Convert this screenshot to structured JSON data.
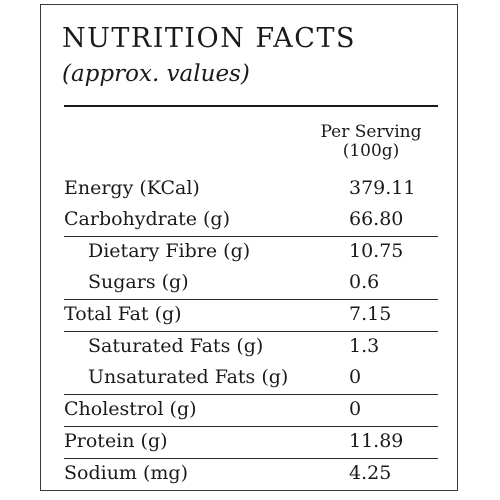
{
  "title": "NUTRITION FACTS",
  "subtitle": "(approx. values)",
  "column_header": {
    "line1": "Per Serving",
    "line2": "(100g)"
  },
  "rows": [
    {
      "label": "Energy (KCal)",
      "value": "379.11"
    },
    {
      "label": "Carbohydrate (g)",
      "value": "66.80"
    },
    {
      "label": "Dietary Fibre (g)",
      "value": "10.75"
    },
    {
      "label": "Sugars (g)",
      "value": "0.6"
    },
    {
      "label": "Total Fat (g)",
      "value": "7.15"
    },
    {
      "label": "Saturated Fats (g)",
      "value": "1.3"
    },
    {
      "label": "Unsaturated Fats (g)",
      "value": "0"
    },
    {
      "label": "Cholestrol (g)",
      "value": "0"
    },
    {
      "label": "Protein (g)",
      "value": "11.89"
    },
    {
      "label": "Sodium (mg)",
      "value": "4.25"
    }
  ]
}
